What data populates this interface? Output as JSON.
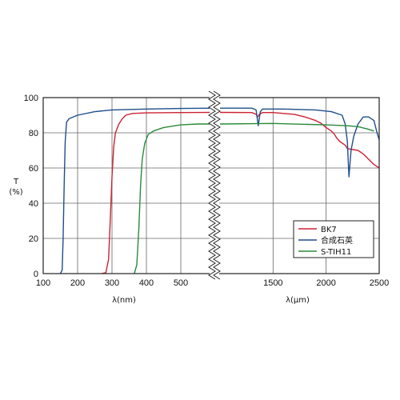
{
  "chart_data": {
    "type": "line",
    "ylabel": "T",
    "ylabel_unit": "(%)",
    "ylim": [
      0,
      100
    ],
    "y_ticks": [
      "0",
      "20",
      "40",
      "60",
      "80",
      "100"
    ],
    "grid": true,
    "legend_position": "lower-right",
    "axis_break": "between 500 nm and 1000 nm",
    "left_axis": {
      "xlabel": "λ(nm)",
      "xlim": [
        100,
        600
      ],
      "x_ticks": [
        "100",
        "200",
        "300",
        "400",
        "500"
      ]
    },
    "right_axis": {
      "xlabel": "λ(μm)",
      "xlim": [
        1000,
        2500
      ],
      "x_ticks": [
        "1500",
        "2000",
        "2500"
      ]
    },
    "series": [
      {
        "name": "BK7",
        "color": "#cc2233",
        "left_points": [
          [
            270,
            0
          ],
          [
            282,
            0.5
          ],
          [
            290,
            8
          ],
          [
            295,
            30
          ],
          [
            300,
            55
          ],
          [
            305,
            72
          ],
          [
            310,
            80
          ],
          [
            320,
            85
          ],
          [
            330,
            88
          ],
          [
            340,
            90
          ],
          [
            360,
            91
          ],
          [
            400,
            91.3
          ],
          [
            500,
            91.5
          ],
          [
            600,
            91.6
          ]
        ],
        "right_points": [
          [
            1000,
            91.6
          ],
          [
            1300,
            91.5
          ],
          [
            1340,
            90.5
          ],
          [
            1355,
            89
          ],
          [
            1370,
            90.5
          ],
          [
            1400,
            91.5
          ],
          [
            1500,
            91.5
          ],
          [
            1700,
            90.5
          ],
          [
            1800,
            89
          ],
          [
            1900,
            87
          ],
          [
            1950,
            85.5
          ],
          [
            2000,
            83
          ],
          [
            2050,
            81
          ],
          [
            2080,
            79
          ],
          [
            2100,
            77
          ],
          [
            2130,
            75
          ],
          [
            2180,
            73
          ],
          [
            2200,
            71
          ],
          [
            2300,
            70
          ],
          [
            2350,
            68
          ],
          [
            2400,
            65
          ],
          [
            2450,
            62
          ],
          [
            2500,
            60
          ]
        ]
      },
      {
        "name": "合成石英",
        "color": "#1f4e8c",
        "left_points": [
          [
            150,
            0
          ],
          [
            155,
            2
          ],
          [
            158,
            20
          ],
          [
            161,
            50
          ],
          [
            164,
            75
          ],
          [
            168,
            86
          ],
          [
            175,
            88
          ],
          [
            200,
            90
          ],
          [
            250,
            92
          ],
          [
            300,
            93
          ],
          [
            400,
            93.5
          ],
          [
            500,
            93.8
          ],
          [
            600,
            94
          ]
        ],
        "right_points": [
          [
            1000,
            94
          ],
          [
            1300,
            94
          ],
          [
            1340,
            93
          ],
          [
            1360,
            84
          ],
          [
            1380,
            92
          ],
          [
            1400,
            93.5
          ],
          [
            1600,
            93.5
          ],
          [
            1900,
            93
          ],
          [
            2050,
            92
          ],
          [
            2150,
            90
          ],
          [
            2180,
            85
          ],
          [
            2200,
            75
          ],
          [
            2215,
            55
          ],
          [
            2235,
            70
          ],
          [
            2260,
            78
          ],
          [
            2300,
            85
          ],
          [
            2350,
            89
          ],
          [
            2400,
            89
          ],
          [
            2450,
            87
          ],
          [
            2480,
            80
          ],
          [
            2500,
            76
          ]
        ]
      },
      {
        "name": "S-TIH11",
        "color": "#2a8a3a",
        "left_points": [
          [
            365,
            0
          ],
          [
            372,
            5
          ],
          [
            378,
            25
          ],
          [
            383,
            50
          ],
          [
            388,
            65
          ],
          [
            395,
            74
          ],
          [
            405,
            79
          ],
          [
            420,
            81
          ],
          [
            450,
            83
          ],
          [
            500,
            84.5
          ],
          [
            550,
            85
          ],
          [
            600,
            85
          ]
        ],
        "right_points": [
          [
            1000,
            85
          ],
          [
            1500,
            85.3
          ],
          [
            2000,
            84.5
          ],
          [
            2200,
            84
          ],
          [
            2300,
            83.5
          ],
          [
            2400,
            82
          ],
          [
            2450,
            81
          ]
        ]
      }
    ]
  }
}
